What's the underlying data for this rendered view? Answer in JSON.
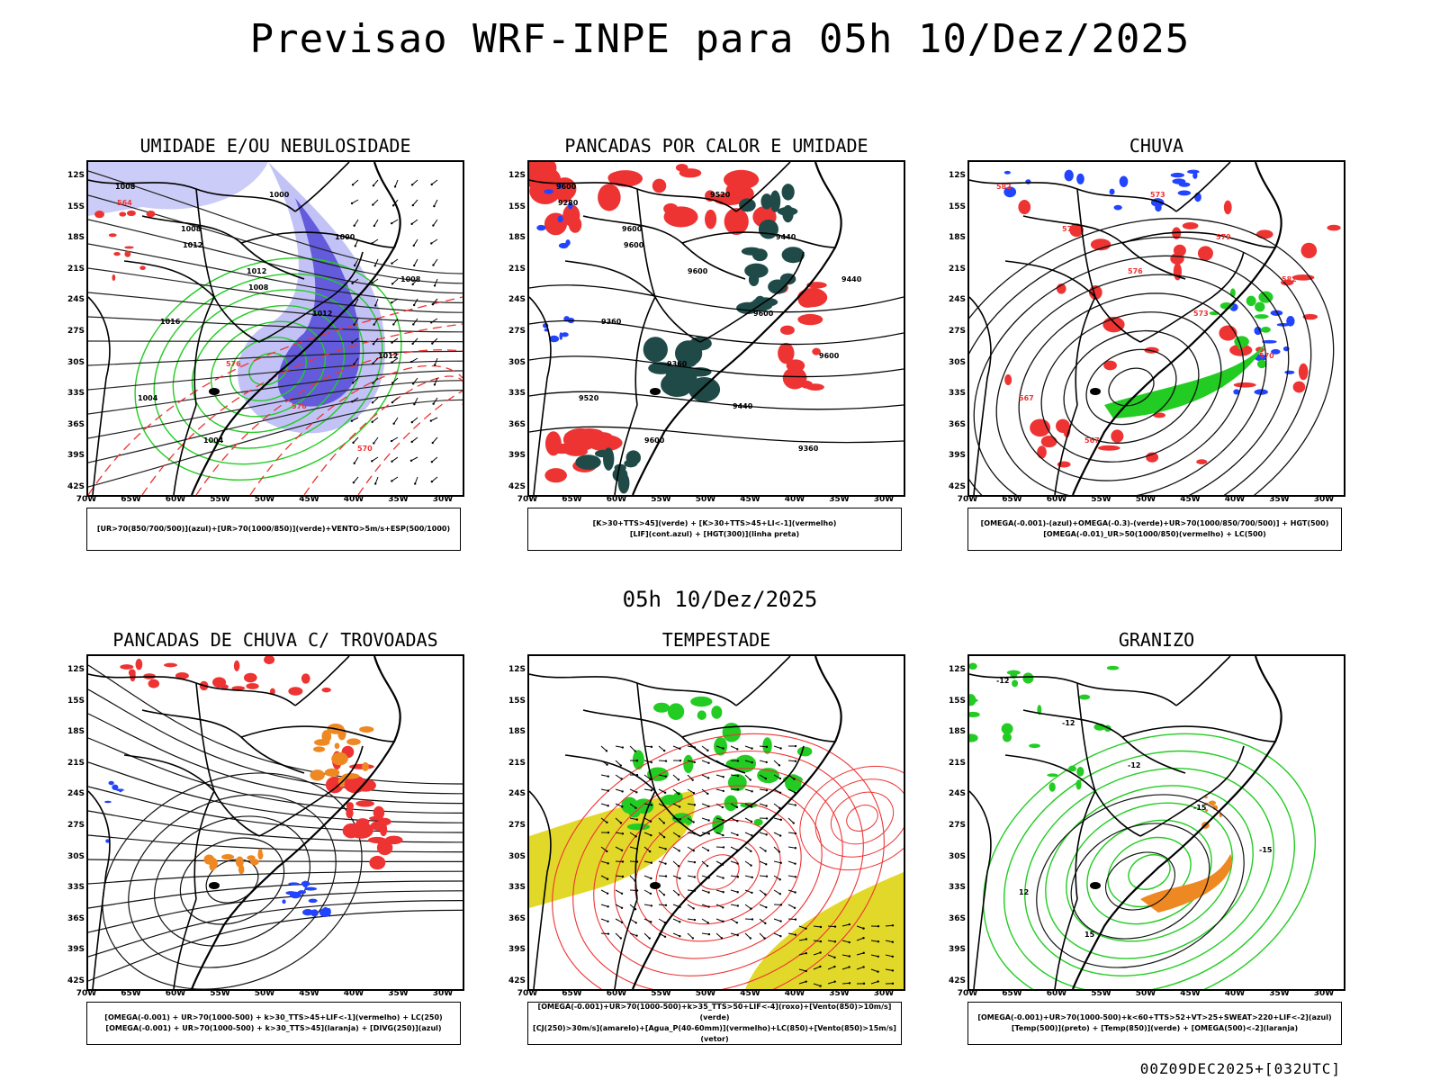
{
  "title": "Previsao WRF-INPE  para 05h 10/Dez/2025",
  "mid_title": "05h 10/Dez/2025",
  "footer": "00Z09DEC2025+[032UTC]",
  "lat_labels": [
    "12S",
    "15S",
    "18S",
    "21S",
    "24S",
    "27S",
    "30S",
    "33S",
    "36S",
    "39S",
    "42S"
  ],
  "lon_labels": [
    "70W",
    "65W",
    "60W",
    "55W",
    "50W",
    "45W",
    "40W",
    "35W",
    "30W"
  ],
  "colors": {
    "green": "#22cc22",
    "red": "#ee3333",
    "blue": "#2244ff",
    "lavender": "#8f8ff0",
    "orange": "#ee8822",
    "yellow": "#e2d82a",
    "teal": "#1f4a48",
    "black": "#000000"
  },
  "panels": [
    {
      "title": "UMIDADE E/OU NEBULOSIDADE",
      "legend": [
        "[UR>70(850/700/500)](azul)+[UR>70(1000/850)](verde)+VENTO>5m/s+ESP(500/1000)"
      ],
      "labels": [
        "1008",
        "1008",
        "1012",
        "1012",
        "1012",
        "1004",
        "1004",
        "1000",
        "1000",
        "1008",
        "1016",
        "576",
        "576",
        "570",
        "564",
        "1012",
        "1008"
      ]
    },
    {
      "title": "PANCADAS POR CALOR E UMIDADE",
      "legend": [
        "[K>30+TTS>45](verde) + [K>30+TTS>45+LI<-1](vermelho)",
        "[LIF](cont.azul) + [HGT(300)](linha preta)"
      ],
      "labels": [
        "9600",
        "9600",
        "9600",
        "9600",
        "9600",
        "9520",
        "9600",
        "9520",
        "9440",
        "9440",
        "9360",
        "9360",
        "9440",
        "9360",
        "9280",
        "9600"
      ]
    },
    {
      "title": "CHUVA",
      "legend": [
        "[OMEGA(-0.001)-(azul)+OMEGA(-0.3)-(verde)+UR>70(1000/850/700/500)] + HGT(500)",
        "[OMEGA(-0.01)_UR>50(1000/850)(vermelho) + LC(500)"
      ],
      "labels": [
        "582",
        "576",
        "576",
        "573",
        "570",
        "567",
        "567",
        "573",
        "579",
        "582"
      ]
    },
    {
      "title": "PANCADAS DE CHUVA C/ TROVOADAS",
      "legend": [
        "[OMEGA(-0.001) + UR>70(1000-500) + k>30_TTS>45+LIF<-1](vermelho) + LC(250)",
        "[OMEGA(-0.001) + UR>70(1000-500) + k>30_TTS>45](laranja) + [DIVG(250)](azul)"
      ],
      "labels": []
    },
    {
      "title": "TEMPESTADE",
      "legend": [
        "[OMEGA(-0.001)+UR>70(1000-500)+k>35_TTS>50+LIF<-4](roxo)+[Vento(850)>10m/s](verde)",
        "[CJ(250)>30m/s](amarelo)+[Agua_P(40-60mm)](vermelho)+LC(850)+[Vento(850)>15m/s](vetor)"
      ],
      "labels": []
    },
    {
      "title": "GRANIZO",
      "legend": [
        "[OMEGA(-0.001)+UR>70(1000-500)+k<60+TTS>52+VT>25+SWEAT>220+LIF<-2](azul)",
        "[Temp(500)](preto) + [Temp(850)](verde) + [OMEGA(500)<-2](laranja)"
      ],
      "labels": [
        "-12",
        "-12",
        "-12",
        "-15",
        "-15",
        "12",
        "15"
      ]
    }
  ]
}
